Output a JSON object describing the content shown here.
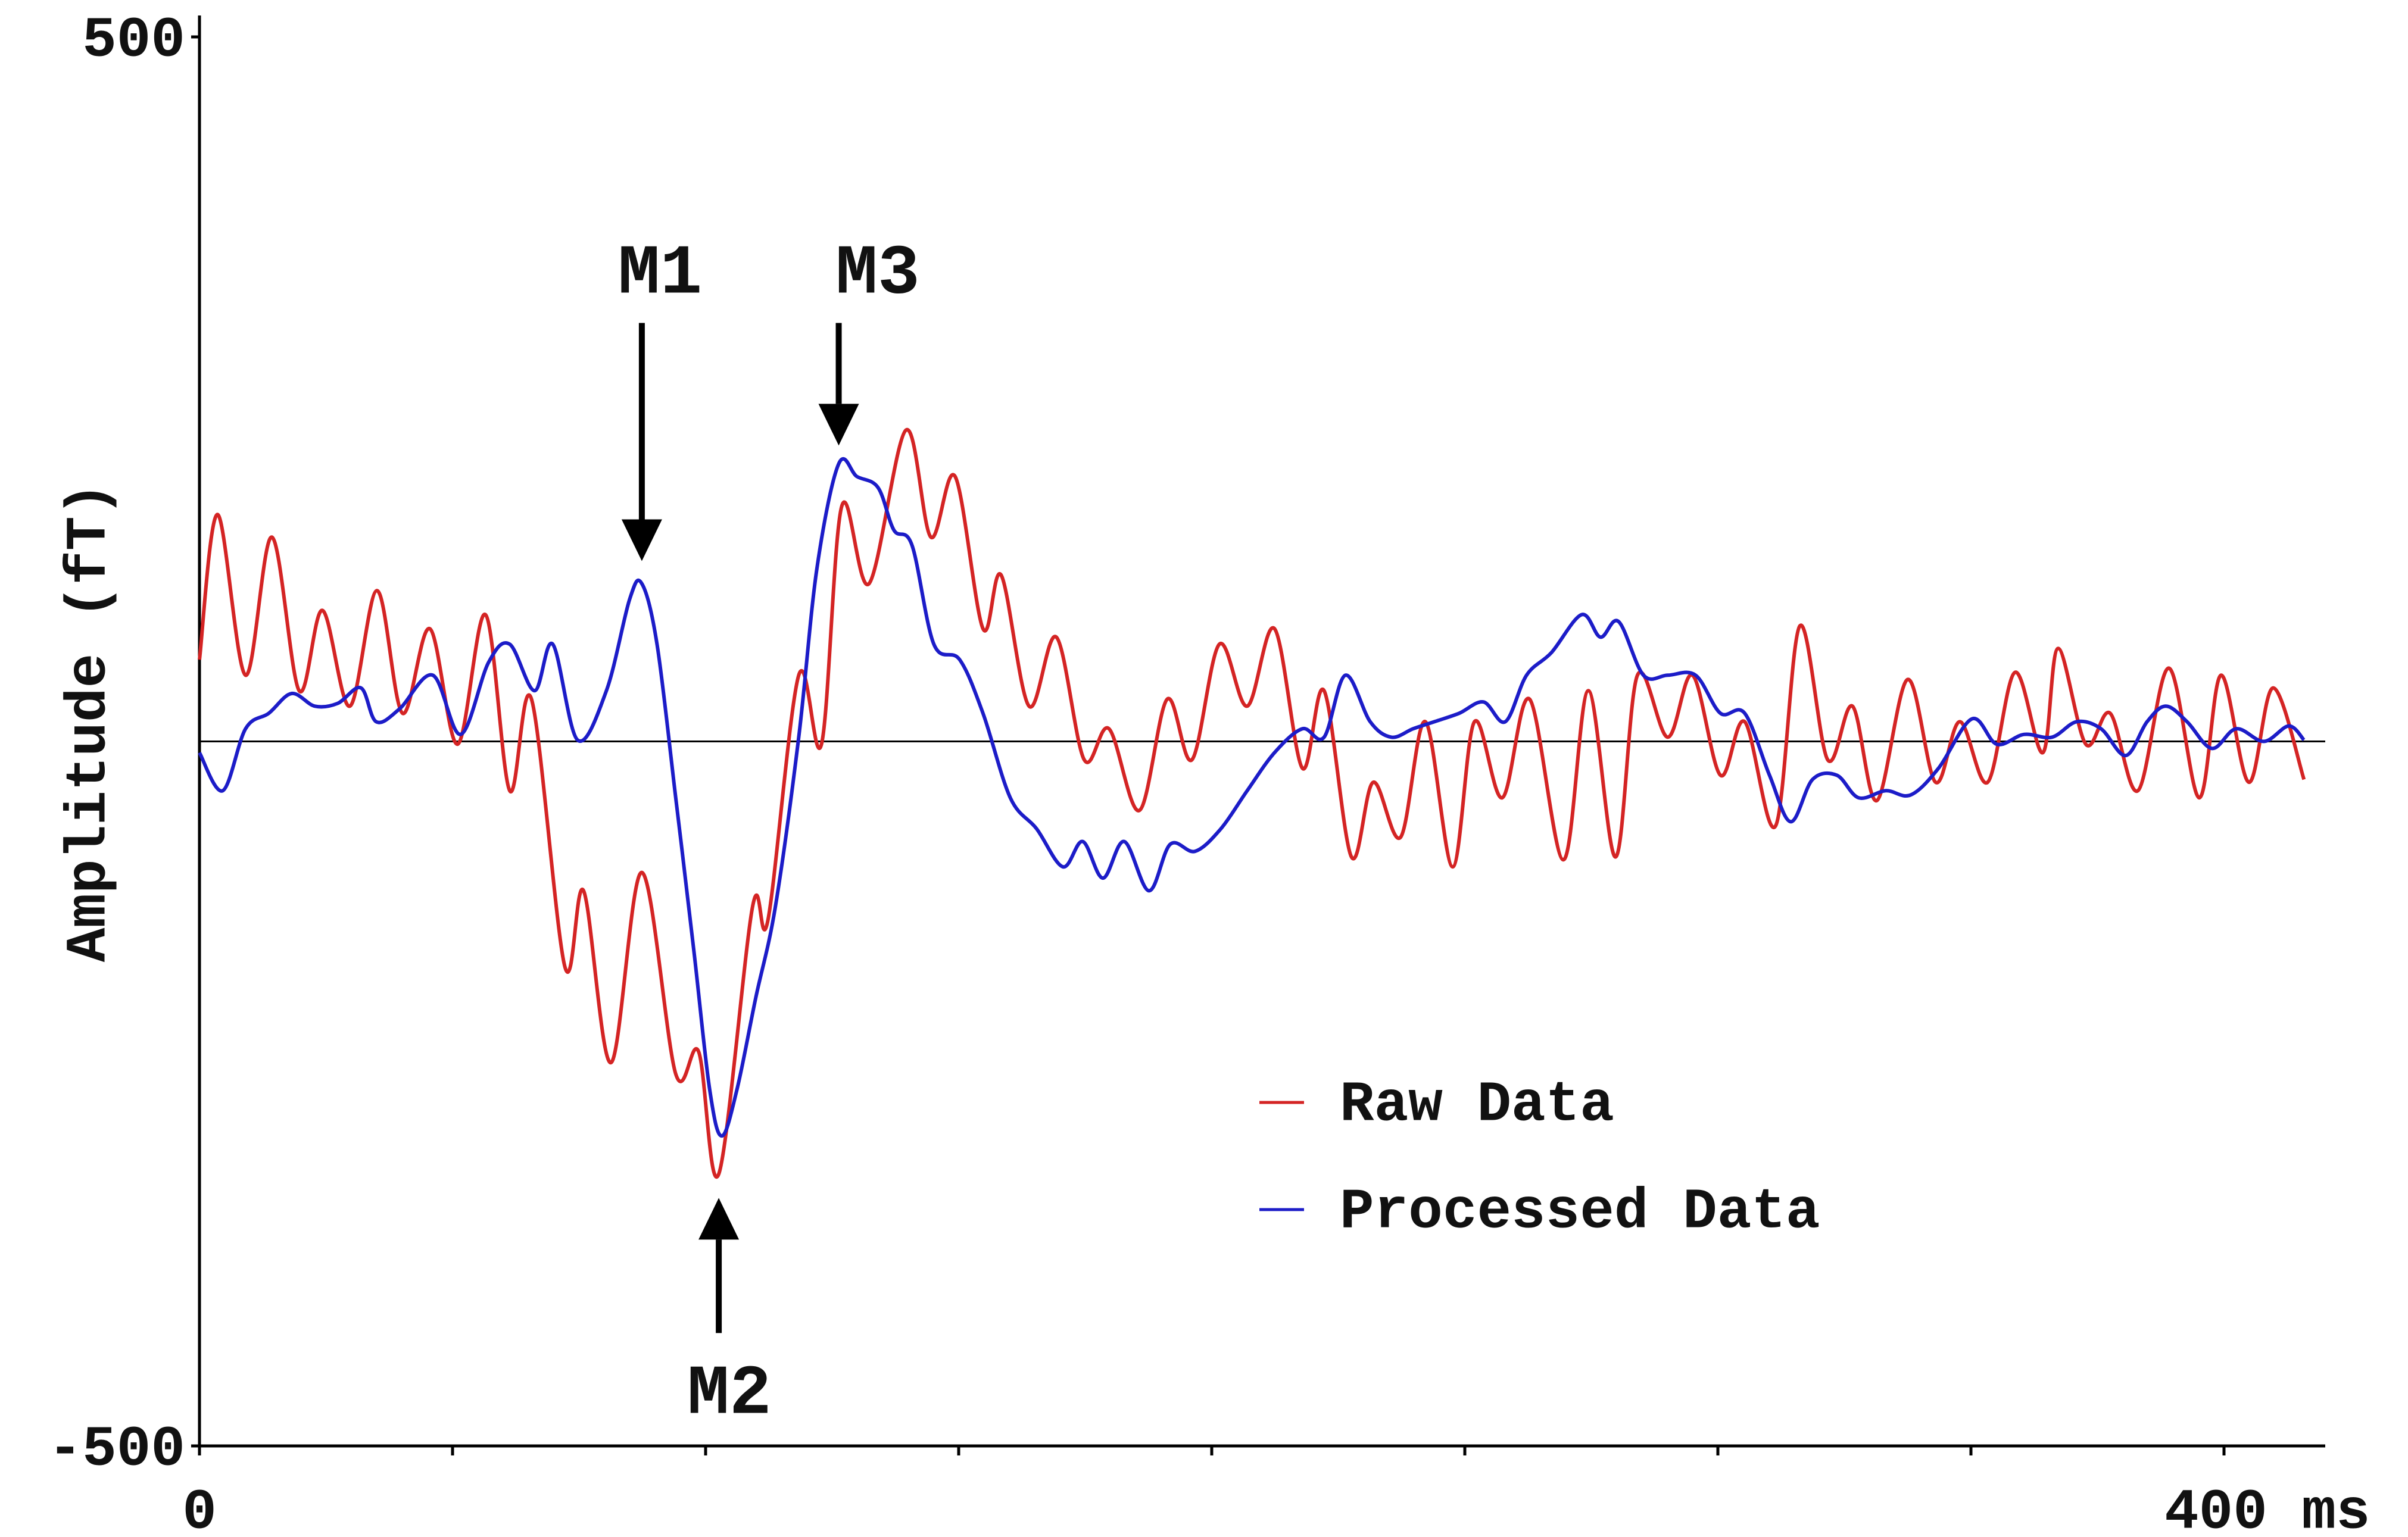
{
  "chart_data": {
    "type": "line",
    "ylabel": "Amplitude (fT)",
    "xlim": [
      0,
      420
    ],
    "ylim": [
      -500,
      500
    ],
    "xticks": [
      0,
      {
        "value": 400,
        "label": "400 ms"
      }
    ],
    "xminorticks": [
      50,
      100,
      150,
      200,
      250,
      300,
      350
    ],
    "yticks": [
      -500,
      500
    ],
    "zero_line": true,
    "legend": "lower right",
    "series": [
      {
        "name": "Raw Data",
        "color": "#d42424",
        "x": [
          0,
          3.6,
          9.1,
          14.3,
          19.7,
          24.3,
          29.7,
          35.1,
          40.1,
          45.5,
          51.0,
          56.5,
          61.3,
          65.6,
          72.2,
          75.9,
          81.3,
          87.4,
          94.1,
          98.6,
          102.6,
          109.3,
          112.3,
          118.4,
          122.9,
          126.9,
          132.3,
          139.6,
          144.5,
          149.3,
          154.8,
          158.4,
          163.9,
          169.3,
          174.8,
          179.7,
          185.7,
          191.2,
          196.1,
          201.5,
          207.0,
          212.4,
          217.9,
          222.2,
          227.6,
          231.9,
          237.3,
          242.2,
          247.6,
          251.9,
          257.4,
          262.8,
          269.5,
          274.4,
          279.8,
          284.1,
          290.1,
          295.0,
          300.5,
          305.3,
          311.4,
          316.2,
          321.7,
          326.6,
          331.4,
          337.5,
          343.0,
          347.8,
          353.3,
          358.7,
          364.2,
          367.2,
          372.7,
          377.5,
          383.0,
          389.1,
          395.1,
          399.4,
          404.9,
          409.7,
          415.8
        ],
        "values": [
          58,
          161,
          47,
          145,
          36,
          93,
          25,
          107,
          20,
          80,
          -2,
          90,
          -35,
          30,
          -160,
          -106,
          -228,
          -93,
          -236,
          -220,
          -307,
          -117,
          -127,
          47,
          -2,
          167,
          112,
          221,
          145,
          188,
          80,
          118,
          25,
          74,
          -13,
          9,
          -49,
          30,
          -13,
          69,
          25,
          80,
          -19,
          36,
          -82,
          -29,
          -68,
          14,
          -89,
          14,
          -40,
          30,
          -84,
          36,
          -82,
          47,
          3,
          47,
          -24,
          14,
          -60,
          82,
          -13,
          25,
          -42,
          44,
          -29,
          14,
          -29,
          49,
          -8,
          66,
          -2,
          20,
          -35,
          52,
          -40,
          47,
          -29,
          38,
          -27
        ]
      },
      {
        "name": "Processed Data",
        "color": "#1c1cc8",
        "x": [
          0,
          4.6,
          9.1,
          13.7,
          18.2,
          22.8,
          27.3,
          31.9,
          34.9,
          39.5,
          46.1,
          51.6,
          57.1,
          61.3,
          66.2,
          69.8,
          74.7,
          80.4,
          85.0,
          87.4,
          90.4,
          94.1,
          97.7,
          100.8,
          103.2,
          106.2,
          109.9,
          113.8,
          118.4,
          122.0,
          126.3,
          129.9,
          134.1,
          137.2,
          140.8,
          145.1,
          150.2,
          154.8,
          160.2,
          165.4,
          170.6,
          174.5,
          178.5,
          182.7,
          187.6,
          191.8,
          196.7,
          201.8,
          207.0,
          212.4,
          217.9,
          222.2,
          226.4,
          231.3,
          235.5,
          239.8,
          244.0,
          248.9,
          253.7,
          258.0,
          262.2,
          267.1,
          273.1,
          276.8,
          280.4,
          285.3,
          290.1,
          295.6,
          300.5,
          305.3,
          310.2,
          314.4,
          318.7,
          323.5,
          327.8,
          333.2,
          338.1,
          343.6,
          350.2,
          355.1,
          360.5,
          366.0,
          370.9,
          375.7,
          380.6,
          384.8,
          388.5,
          392.7,
          397.6,
          402.4,
          407.9,
          412.8,
          415.8
        ],
        "values": [
          -8,
          -35,
          9,
          20,
          34,
          25,
          27,
          38,
          14,
          23,
          47,
          5,
          56,
          69,
          36,
          69,
          1,
          36,
          101,
          112,
          69,
          -40,
          -149,
          -247,
          -280,
          -247,
          -182,
          -117,
          3,
          123,
          197,
          188,
          180,
          150,
          139,
          69,
          58,
          20,
          -40,
          -62,
          -89,
          -71,
          -97,
          -71,
          -106,
          -73,
          -78,
          -62,
          -35,
          -8,
          9,
          3,
          47,
          14,
          3,
          9,
          14,
          20,
          28,
          14,
          47,
          63,
          90,
          74,
          85,
          47,
          47,
          47,
          20,
          20,
          -24,
          -57,
          -27,
          -24,
          -40,
          -35,
          -38,
          -19,
          16,
          -2,
          5,
          3,
          14,
          9,
          -10,
          14,
          25,
          14,
          -5,
          9,
          0,
          11,
          1
        ]
      }
    ],
    "annotations": [
      {
        "text": "M1",
        "xy": [
          87.4,
          128
        ],
        "xytext": [
          91,
          335
        ]
      },
      {
        "text": "M2",
        "xy": [
          102.6,
          -324
        ],
        "xytext": [
          104.7,
          -460
        ]
      },
      {
        "text": "M3",
        "xy": [
          126.3,
          210
        ],
        "xytext": [
          134,
          335
        ]
      }
    ]
  }
}
